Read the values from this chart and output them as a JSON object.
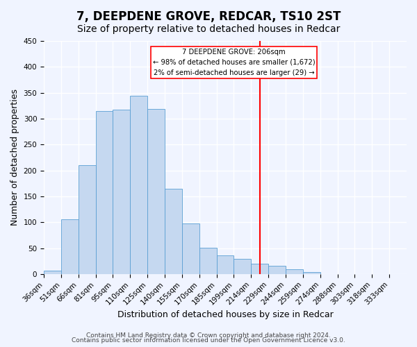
{
  "title": "7, DEEPDENE GROVE, REDCAR, TS10 2ST",
  "subtitle": "Size of property relative to detached houses in Redcar",
  "xlabel": "Distribution of detached houses by size in Redcar",
  "ylabel": "Number of detached properties",
  "bin_labels": [
    "36sqm",
    "51sqm",
    "66sqm",
    "81sqm",
    "95sqm",
    "110sqm",
    "125sqm",
    "140sqm",
    "155sqm",
    "170sqm",
    "185sqm",
    "199sqm",
    "214sqm",
    "229sqm",
    "244sqm",
    "259sqm",
    "274sqm",
    "288sqm",
    "303sqm",
    "318sqm",
    "333sqm"
  ],
  "bar_values": [
    6,
    106,
    210,
    315,
    318,
    344,
    319,
    165,
    97,
    51,
    36,
    29,
    20,
    16,
    9,
    4,
    0,
    0,
    0,
    0,
    0
  ],
  "bar_color": "#c5d8f0",
  "bar_edge_color": "#5a9fd4",
  "ylim": [
    0,
    450
  ],
  "yticks": [
    0,
    50,
    100,
    150,
    200,
    250,
    300,
    350,
    400,
    450
  ],
  "vline_x": 12.5,
  "vline_color": "red",
  "annotation_title": "7 DEEPDENE GROVE: 206sqm",
  "annotation_line1": "← 98% of detached houses are smaller (1,672)",
  "annotation_line2": "2% of semi-detached houses are larger (29) →",
  "footer_line1": "Contains HM Land Registry data © Crown copyright and database right 2024.",
  "footer_line2": "Contains public sector information licensed under the Open Government Licence v3.0.",
  "background_color": "#f0f4ff",
  "grid_color": "#ffffff",
  "title_fontsize": 12,
  "subtitle_fontsize": 10,
  "axis_label_fontsize": 9,
  "tick_fontsize": 7.5,
  "footer_fontsize": 6.5
}
